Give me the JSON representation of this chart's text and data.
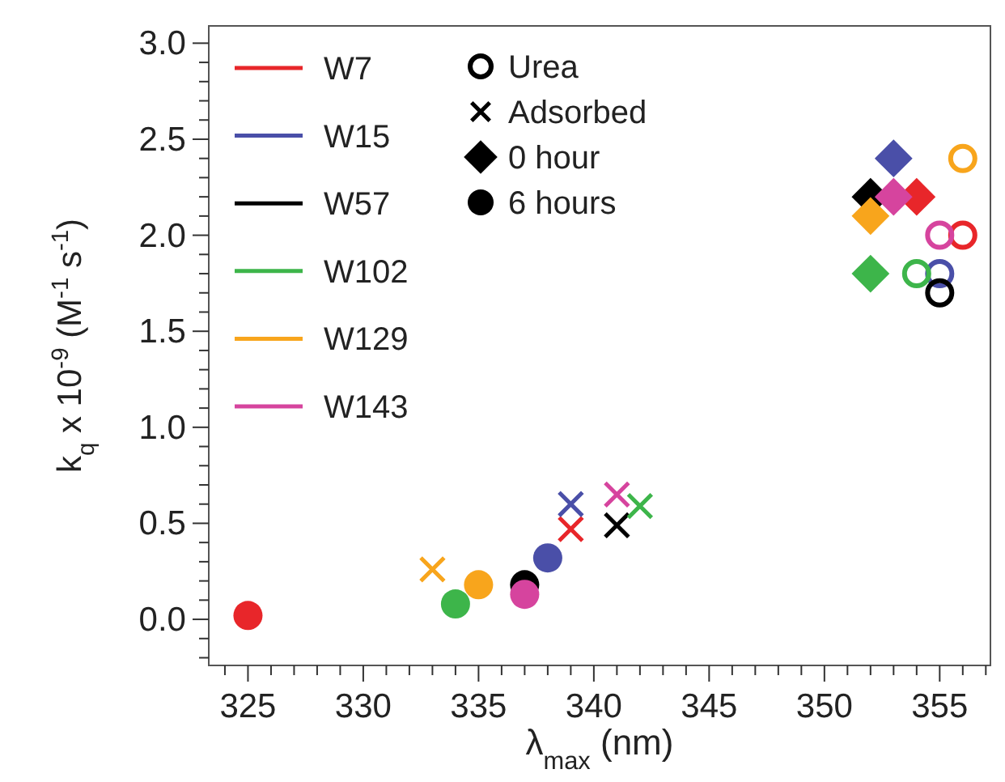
{
  "chart_data": {
    "type": "scatter",
    "xlabel": "λ$_{max}$ (nm)",
    "ylabel": "k$_{q}$ x 10$^{-9}$ (M$^{-1}$ s$^{-1}$)",
    "xlim": [
      323.3,
      357.2
    ],
    "ylim": [
      -0.24,
      3.09
    ],
    "xticks": [
      {
        "value": 324,
        "label": null
      },
      {
        "value": 325,
        "label": "325"
      },
      {
        "value": 326,
        "label": null
      },
      {
        "value": 327,
        "label": null
      },
      {
        "value": 328,
        "label": null
      },
      {
        "value": 329,
        "label": null
      },
      {
        "value": 330,
        "label": "330"
      },
      {
        "value": 331,
        "label": null
      },
      {
        "value": 332,
        "label": null
      },
      {
        "value": 333,
        "label": null
      },
      {
        "value": 334,
        "label": null
      },
      {
        "value": 335,
        "label": "335"
      },
      {
        "value": 336,
        "label": null
      },
      {
        "value": 337,
        "label": null
      },
      {
        "value": 338,
        "label": null
      },
      {
        "value": 339,
        "label": null
      },
      {
        "value": 340,
        "label": "340"
      },
      {
        "value": 341,
        "label": null
      },
      {
        "value": 342,
        "label": null
      },
      {
        "value": 343,
        "label": null
      },
      {
        "value": 344,
        "label": null
      },
      {
        "value": 345,
        "label": "345"
      },
      {
        "value": 346,
        "label": null
      },
      {
        "value": 347,
        "label": null
      },
      {
        "value": 348,
        "label": null
      },
      {
        "value": 349,
        "label": null
      },
      {
        "value": 350,
        "label": "350"
      },
      {
        "value": 351,
        "label": null
      },
      {
        "value": 352,
        "label": null
      },
      {
        "value": 353,
        "label": null
      },
      {
        "value": 354,
        "label": null
      },
      {
        "value": 355,
        "label": "355"
      },
      {
        "value": 356,
        "label": null
      },
      {
        "value": 357,
        "label": null
      }
    ],
    "yticks": [
      {
        "value": -0.2,
        "label": null
      },
      {
        "value": -0.1,
        "label": null
      },
      {
        "value": 0,
        "label": "0.0"
      },
      {
        "value": 0.1,
        "label": null
      },
      {
        "value": 0.2,
        "label": null
      },
      {
        "value": 0.3,
        "label": null
      },
      {
        "value": 0.4,
        "label": null
      },
      {
        "value": 0.5,
        "label": "0.5"
      },
      {
        "value": 0.6,
        "label": null
      },
      {
        "value": 0.7,
        "label": null
      },
      {
        "value": 0.8,
        "label": null
      },
      {
        "value": 0.9,
        "label": null
      },
      {
        "value": 1,
        "label": "1.0"
      },
      {
        "value": 1.1,
        "label": null
      },
      {
        "value": 1.2,
        "label": null
      },
      {
        "value": 1.3,
        "label": null
      },
      {
        "value": 1.4,
        "label": null
      },
      {
        "value": 1.5,
        "label": "1.5"
      },
      {
        "value": 1.6,
        "label": null
      },
      {
        "value": 1.7,
        "label": null
      },
      {
        "value": 1.8,
        "label": null
      },
      {
        "value": 1.9,
        "label": null
      },
      {
        "value": 2,
        "label": "2.0"
      },
      {
        "value": 2.1,
        "label": null
      },
      {
        "value": 2.2,
        "label": null
      },
      {
        "value": 2.3,
        "label": null
      },
      {
        "value": 2.4,
        "label": null
      },
      {
        "value": 2.5,
        "label": "2.5"
      },
      {
        "value": 2.6,
        "label": null
      },
      {
        "value": 2.7,
        "label": null
      },
      {
        "value": 2.8,
        "label": null
      },
      {
        "value": 2.9,
        "label": null
      },
      {
        "value": 3,
        "label": "3.0"
      }
    ],
    "legend": "top left",
    "grid": false,
    "annotations": [
      "W7",
      "W15",
      "W57",
      "W102",
      "W129",
      "W143"
    ],
    "series": [
      {
        "name": "Urea",
        "marker": "circle-open",
        "color": "#000000",
        "colors": [
          "#e8262a",
          "#4a4fa8",
          "#000000",
          "#3db54a",
          "#f8a51c",
          "#d6449e"
        ],
        "x": [
          356,
          355,
          355,
          354,
          356,
          355
        ],
        "values": [
          2.0,
          1.8,
          1.7,
          1.8,
          2.4,
          2.0
        ]
      },
      {
        "name": "Adsorbed",
        "marker": "cross",
        "color": "#000000",
        "colors": [
          "#e8262a",
          "#4a4fa8",
          "#000000",
          "#3db54a",
          "#f8a51c",
          "#d6449e"
        ],
        "x": [
          339,
          339,
          341,
          342,
          333,
          341
        ],
        "values": [
          0.47,
          0.6,
          0.49,
          0.59,
          0.26,
          0.65
        ]
      },
      {
        "name": "0 hour",
        "marker": "diamond",
        "color": "#000000",
        "colors": [
          "#e8262a",
          "#4a4fa8",
          "#000000",
          "#3db54a",
          "#f8a51c",
          "#d6449e"
        ],
        "x": [
          354,
          353,
          352,
          352,
          352,
          353
        ],
        "values": [
          2.2,
          2.4,
          2.2,
          1.8,
          2.1,
          2.2
        ]
      },
      {
        "name": "6 hours",
        "marker": "circle",
        "color": "#000000",
        "colors": [
          "#e8262a",
          "#4a4fa8",
          "#000000",
          "#3db54a",
          "#f8a51c",
          "#d6449e"
        ],
        "x": [
          325,
          338,
          337,
          334,
          335,
          337
        ],
        "values": [
          0.02,
          0.32,
          0.18,
          0.08,
          0.18,
          0.13
        ]
      }
    ]
  }
}
